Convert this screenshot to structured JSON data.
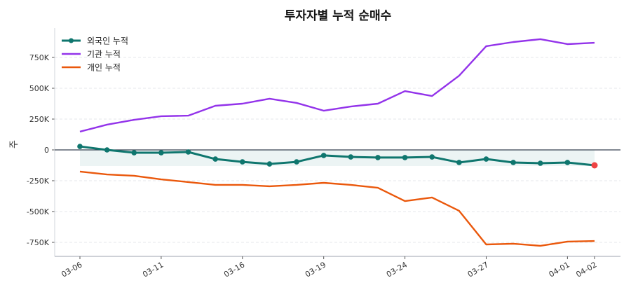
{
  "chart_data": {
    "type": "line",
    "title": "투자자별 누적 순매수",
    "xlabel": "",
    "ylabel": "주",
    "x": [
      "03-06",
      "03-09",
      "03-10",
      "03-11",
      "03-12",
      "03-13",
      "03-16",
      "03-17",
      "03-18",
      "03-19",
      "03-20",
      "03-23",
      "03-24",
      "03-25",
      "03-26",
      "03-27",
      "03-30",
      "03-31",
      "04-01",
      "04-02"
    ],
    "xticks": [
      "03-06",
      "03-11",
      "03-16",
      "03-19",
      "03-24",
      "03-27",
      "04-01",
      "04-02"
    ],
    "ylim": [
      -850000,
      980000
    ],
    "yticks": [
      -750000,
      -500000,
      -250000,
      0,
      250000,
      500000,
      750000
    ],
    "ytick_labels": [
      "-750K",
      "-500K",
      "-250K",
      "0",
      "250K",
      "500K",
      "750K"
    ],
    "grid": "horizontal dashed",
    "legend": "top-left",
    "series": [
      {
        "name": "외국인 누적",
        "color": "#0f766e",
        "markers": true,
        "values": [
          28000,
          0,
          -23000,
          -23000,
          -17000,
          -74000,
          -97000,
          -114000,
          -97000,
          -45000,
          -57000,
          -62000,
          -62000,
          -57000,
          -102000,
          -74000,
          -102000,
          -108000,
          -102000,
          -125000
        ]
      },
      {
        "name": "기관 누적",
        "color": "#9333ea",
        "markers": false,
        "values": [
          148000,
          205000,
          244000,
          273000,
          278000,
          358000,
          375000,
          415000,
          381000,
          318000,
          352000,
          375000,
          477000,
          437000,
          602000,
          841000,
          875000,
          898000,
          858000,
          869000
        ]
      },
      {
        "name": "개인 누적",
        "color": "#ea580c",
        "markers": false,
        "values": [
          -176000,
          -199000,
          -210000,
          -239000,
          -261000,
          -284000,
          -284000,
          -295000,
          -284000,
          -267000,
          -284000,
          -307000,
          -415000,
          -386000,
          -494000,
          -767000,
          -761000,
          -778000,
          -744000,
          -739000
        ]
      }
    ],
    "highlight_last_color": "#ef4444",
    "fill_color": "#0f766e"
  }
}
